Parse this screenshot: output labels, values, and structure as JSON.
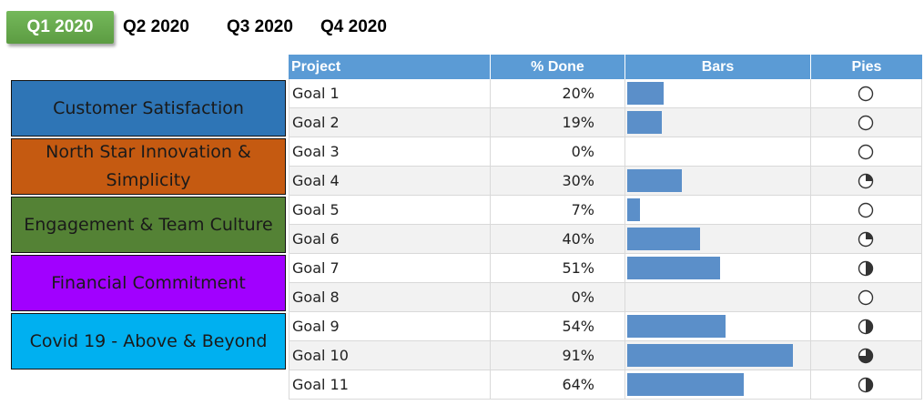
{
  "tabs": [
    {
      "label": "Q1 2020",
      "active": true
    },
    {
      "label": "Q2 2020",
      "active": false
    },
    {
      "label": "Q3 2020",
      "active": false
    },
    {
      "label": "Q4 2020",
      "active": false
    }
  ],
  "categories": [
    {
      "label": "Customer Satisfaction",
      "color": "#2e75b6"
    },
    {
      "label": "North Star Innovation & Simplicity",
      "color": "#c55a11"
    },
    {
      "label": "Engagement & Team Culture",
      "color": "#548235"
    },
    {
      "label": "Financial Commitment",
      "color": "#a100ff"
    },
    {
      "label": "Covid 19 - Above & Beyond",
      "color": "#00b0f0"
    }
  ],
  "table": {
    "headers": {
      "project": "Project",
      "done": "% Done",
      "bars": "Bars",
      "pies": "Pies"
    },
    "rows": [
      {
        "project": "Goal 1",
        "done": "20%",
        "fraction": 0.2
      },
      {
        "project": "Goal 2",
        "done": "19%",
        "fraction": 0.19
      },
      {
        "project": "Goal 3",
        "done": "0%",
        "fraction": 0.0
      },
      {
        "project": "Goal 4",
        "done": "30%",
        "fraction": 0.3
      },
      {
        "project": "Goal 5",
        "done": "7%",
        "fraction": 0.07
      },
      {
        "project": "Goal 6",
        "done": "40%",
        "fraction": 0.4
      },
      {
        "project": "Goal 7",
        "done": "51%",
        "fraction": 0.51
      },
      {
        "project": "Goal 8",
        "done": "0%",
        "fraction": 0.0
      },
      {
        "project": "Goal 9",
        "done": "54%",
        "fraction": 0.54
      },
      {
        "project": "Goal 10",
        "done": "91%",
        "fraction": 0.91
      },
      {
        "project": "Goal 11",
        "done": "64%",
        "fraction": 0.64
      }
    ]
  },
  "colors": {
    "header": "#5b9bd5",
    "bar": "#5b8fc9",
    "tab_active": "#6aa84f"
  }
}
